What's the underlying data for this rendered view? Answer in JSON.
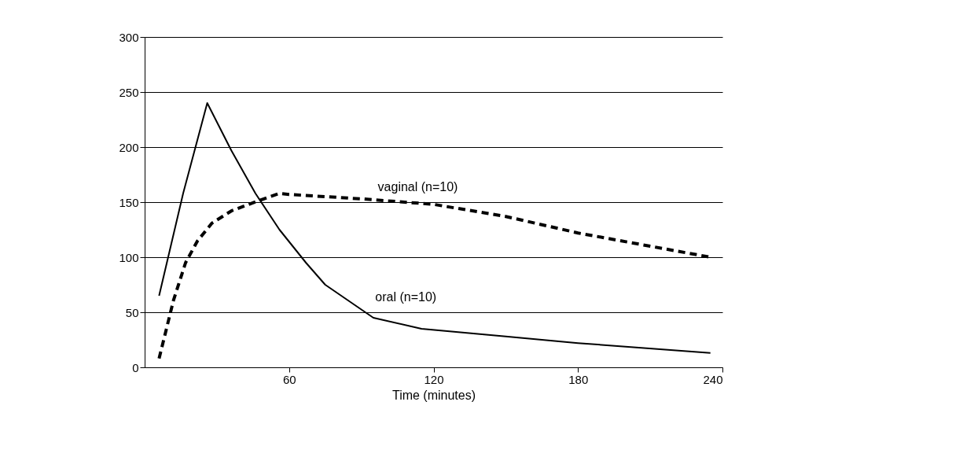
{
  "chart_data": {
    "type": "line",
    "xlabel": "Time (minutes)",
    "xlim": [
      0,
      240
    ],
    "xticks": [
      60,
      120,
      180,
      240
    ],
    "ylim": [
      0,
      300
    ],
    "yticks": [
      0,
      50,
      100,
      150,
      200,
      250,
      300
    ],
    "grid": "y",
    "marker": "none",
    "legend": false,
    "series": [
      {
        "name": "oral (n=10)",
        "color": "#000000",
        "line_style": "solid",
        "x": [
          6,
          16,
          26,
          36,
          46,
          56,
          67,
          75,
          95,
          115,
          150,
          180,
          235
        ],
        "values": [
          65,
          158,
          240,
          197,
          158,
          125,
          95,
          75,
          45,
          35,
          28,
          22,
          13
        ]
      },
      {
        "name": "vaginal (n=10)",
        "color": "#000000",
        "line_style": "dashed",
        "x": [
          6,
          12,
          17,
          22,
          28,
          36,
          47,
          56,
          60,
          90,
          120,
          150,
          180,
          210,
          235
        ],
        "values": [
          8,
          61,
          95,
          115,
          131,
          142,
          151,
          158,
          157,
          153,
          148,
          137,
          122,
          110,
          100
        ]
      }
    ]
  }
}
